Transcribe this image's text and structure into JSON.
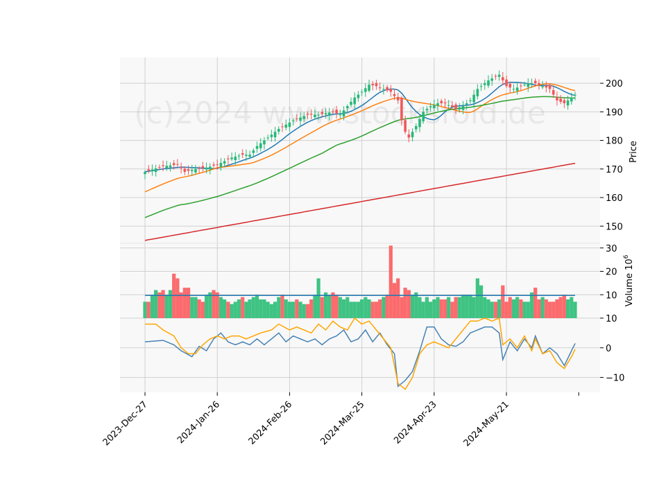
{
  "chart_data": {
    "type": "candlestick",
    "watermark": "(c)2024 www.stocksfold.de",
    "x_tick_labels": [
      "2023-Dec-27",
      "2024-Jan-26",
      "2024-Feb-26",
      "2024-Mar-25",
      "2024-Apr-23",
      "2024-May-21"
    ],
    "x_tick_indices": [
      0,
      20,
      40,
      60,
      80,
      100
    ],
    "colors": {
      "up": "#26b877",
      "down": "#f0585a",
      "vol_up": "#3fc383",
      "vol_down": "#fb6b6d",
      "ma_short": "#1f77b4",
      "ma_mid": "#ff7f0e",
      "ma_long": "#2ca02c",
      "ma_200": "#d62728",
      "vol_ma": "#1f77b4",
      "osc1": "#4682b4",
      "osc2": "#ffa500",
      "panel_bg": "#f8f8f8",
      "grid": "#d0d0d0"
    },
    "panels": [
      {
        "name": "price",
        "ylabel": "Price",
        "ylim": [
          144,
          209
        ],
        "ticks": [
          150,
          160,
          170,
          180,
          190,
          200
        ],
        "tick_labels": [
          "150",
          "160",
          "170",
          "180",
          "190",
          "200"
        ]
      },
      {
        "name": "volume",
        "ylabel": "Volume  10",
        "ylabel_sup": "6",
        "ylim": [
          0,
          32
        ],
        "ticks": [
          10,
          20,
          30
        ],
        "tick_labels": [
          "10",
          "20",
          "30"
        ]
      },
      {
        "name": "oscillator",
        "ylabel": "",
        "ylim": [
          -15,
          10
        ],
        "ticks": [
          -10,
          0,
          10
        ],
        "tick_labels": [
          "−10",
          "0",
          "10"
        ]
      }
    ],
    "price_anchors": [
      [
        0,
        169
      ],
      [
        5,
        171
      ],
      [
        9,
        171.5
      ],
      [
        11,
        169
      ],
      [
        14,
        170
      ],
      [
        17,
        170.5
      ],
      [
        20,
        171.5
      ],
      [
        24,
        174
      ],
      [
        27,
        175
      ],
      [
        29,
        175
      ],
      [
        31,
        178
      ],
      [
        34,
        181
      ],
      [
        37,
        184
      ],
      [
        41,
        187
      ],
      [
        45,
        189
      ],
      [
        48,
        189
      ],
      [
        52,
        190
      ],
      [
        54,
        189
      ],
      [
        56,
        192
      ],
      [
        58,
        195
      ],
      [
        60,
        197
      ],
      [
        62,
        199.5
      ],
      [
        64,
        199
      ],
      [
        66,
        198
      ],
      [
        68,
        197
      ],
      [
        70,
        194
      ],
      [
        71,
        187
      ],
      [
        72,
        183
      ],
      [
        73,
        181
      ],
      [
        75,
        185
      ],
      [
        77,
        190
      ],
      [
        79,
        192
      ],
      [
        81,
        193
      ],
      [
        83,
        193
      ],
      [
        86,
        191
      ],
      [
        88,
        192
      ],
      [
        90,
        194
      ],
      [
        92,
        198
      ],
      [
        95,
        201
      ],
      [
        98,
        203
      ],
      [
        100,
        199
      ],
      [
        102,
        198
      ],
      [
        104,
        199
      ],
      [
        106,
        200
      ],
      [
        108,
        200
      ],
      [
        110,
        199
      ],
      [
        112,
        198
      ],
      [
        114,
        194
      ],
      [
        116,
        193
      ],
      [
        118,
        195
      ],
      [
        119,
        196
      ]
    ],
    "volume_values": [
      7,
      7,
      10,
      12,
      11,
      12,
      10,
      12,
      19,
      17,
      11,
      13,
      13,
      9,
      9,
      8,
      7,
      10,
      11,
      12,
      11,
      9,
      8,
      7,
      6,
      7,
      8,
      9,
      7,
      8,
      9,
      10,
      8,
      8,
      7,
      6,
      7,
      9,
      10,
      8,
      7,
      7,
      8,
      7,
      6,
      6,
      8,
      10,
      17,
      9,
      11,
      10,
      11,
      10,
      9,
      8,
      9,
      7,
      7,
      7,
      8,
      9,
      8,
      7,
      7,
      8,
      9,
      10,
      31,
      15,
      17,
      9,
      13,
      12,
      10,
      11,
      9,
      7,
      9,
      7,
      8,
      9,
      8,
      8,
      9,
      7,
      9,
      9,
      10,
      10,
      10,
      9,
      17,
      14,
      9,
      8,
      7,
      7,
      8,
      14,
      7,
      9,
      8,
      9,
      8,
      7,
      7,
      11,
      13,
      8,
      9,
      8,
      7,
      7,
      8,
      9,
      10,
      8,
      9,
      7
    ],
    "volume_ma": 9.7,
    "ma_200_range": [
      145,
      172
    ],
    "osc1_anchors": [
      [
        0,
        2
      ],
      [
        5,
        2.5
      ],
      [
        8,
        1
      ],
      [
        10,
        -1
      ],
      [
        13,
        -3
      ],
      [
        15,
        0.5
      ],
      [
        17,
        -1
      ],
      [
        19,
        3
      ],
      [
        21,
        5
      ],
      [
        23,
        2
      ],
      [
        25,
        1
      ],
      [
        27,
        2
      ],
      [
        29,
        1
      ],
      [
        31,
        3
      ],
      [
        33,
        1
      ],
      [
        35,
        3
      ],
      [
        37,
        5
      ],
      [
        39,
        2
      ],
      [
        41,
        4
      ],
      [
        43,
        3
      ],
      [
        45,
        2
      ],
      [
        47,
        3
      ],
      [
        49,
        1
      ],
      [
        51,
        3
      ],
      [
        53,
        4
      ],
      [
        55,
        6
      ],
      [
        57,
        2
      ],
      [
        59,
        3
      ],
      [
        61,
        6
      ],
      [
        63,
        2
      ],
      [
        65,
        5
      ],
      [
        67,
        1
      ],
      [
        69,
        -2
      ],
      [
        70,
        -13
      ],
      [
        72,
        -11
      ],
      [
        74,
        -8
      ],
      [
        76,
        -1
      ],
      [
        78,
        7
      ],
      [
        80,
        7
      ],
      [
        82,
        3
      ],
      [
        84,
        1
      ],
      [
        86,
        0.5
      ],
      [
        88,
        2
      ],
      [
        90,
        5
      ],
      [
        92,
        6
      ],
      [
        94,
        7
      ],
      [
        96,
        7
      ],
      [
        98,
        5
      ],
      [
        99,
        -4
      ],
      [
        101,
        2
      ],
      [
        103,
        -1
      ],
      [
        105,
        3
      ],
      [
        107,
        0
      ],
      [
        108,
        4
      ],
      [
        110,
        -2
      ],
      [
        112,
        0
      ],
      [
        114,
        -2
      ],
      [
        116,
        -6
      ],
      [
        118,
        -1
      ],
      [
        119,
        1.5
      ]
    ],
    "osc2_anchors": [
      [
        0,
        8
      ],
      [
        3,
        8
      ],
      [
        5,
        6
      ],
      [
        8,
        4
      ],
      [
        10,
        0
      ],
      [
        12,
        -2
      ],
      [
        14,
        -2
      ],
      [
        16,
        1
      ],
      [
        18,
        3
      ],
      [
        20,
        4
      ],
      [
        22,
        3
      ],
      [
        24,
        4
      ],
      [
        26,
        4
      ],
      [
        28,
        3
      ],
      [
        30,
        4
      ],
      [
        32,
        5
      ],
      [
        35,
        6
      ],
      [
        37,
        8
      ],
      [
        40,
        6
      ],
      [
        42,
        7
      ],
      [
        44,
        6
      ],
      [
        46,
        5
      ],
      [
        48,
        8
      ],
      [
        50,
        6
      ],
      [
        52,
        9
      ],
      [
        54,
        7
      ],
      [
        56,
        6
      ],
      [
        58,
        10
      ],
      [
        60,
        8
      ],
      [
        62,
        9
      ],
      [
        64,
        6
      ],
      [
        66,
        3
      ],
      [
        68,
        0
      ],
      [
        70,
        -12
      ],
      [
        72,
        -14
      ],
      [
        74,
        -10
      ],
      [
        76,
        -2
      ],
      [
        78,
        1
      ],
      [
        80,
        2
      ],
      [
        82,
        1
      ],
      [
        84,
        0
      ],
      [
        86,
        3
      ],
      [
        88,
        6
      ],
      [
        90,
        9
      ],
      [
        92,
        9
      ],
      [
        94,
        10
      ],
      [
        96,
        9
      ],
      [
        98,
        10
      ],
      [
        99,
        1
      ],
      [
        101,
        3
      ],
      [
        103,
        0
      ],
      [
        105,
        4
      ],
      [
        107,
        -1
      ],
      [
        108,
        3
      ],
      [
        110,
        -2
      ],
      [
        112,
        -1
      ],
      [
        114,
        -5
      ],
      [
        116,
        -7
      ],
      [
        118,
        -3
      ],
      [
        119,
        -0.5
      ]
    ]
  }
}
